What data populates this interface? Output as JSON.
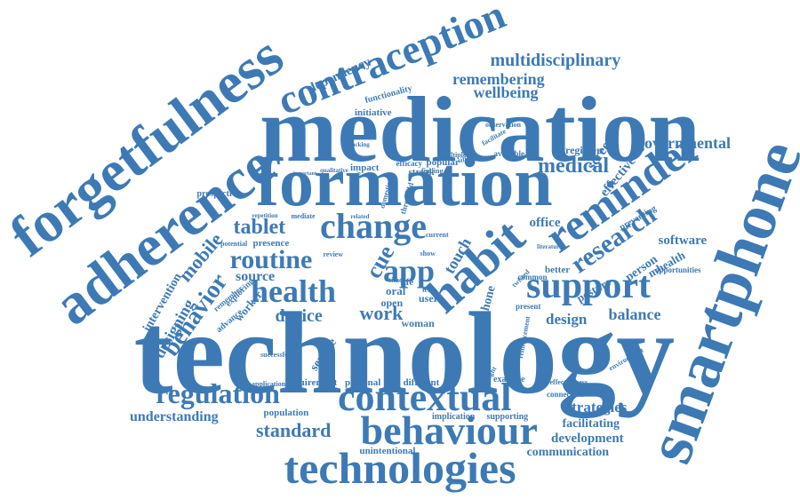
{
  "cloud": {
    "color": "#3d7ab5",
    "background": "#ffffff",
    "words": [
      "technology",
      "medication",
      "formation",
      "smartphone",
      "forgetfulness",
      "adherence",
      "contraception",
      "habit",
      "reminder",
      "technologies",
      "behaviour",
      "contextual",
      "support",
      "change",
      "health",
      "app",
      "regulation",
      "routine",
      "research",
      "multidisciplinary",
      "remembering",
      "wellbeing",
      "behavior",
      "tablet",
      "medical",
      "governmental",
      "mobile",
      "standard",
      "work",
      "device",
      "balance",
      "strategies",
      "understanding",
      "development",
      "communication",
      "facilitating",
      "design",
      "cue",
      "touch",
      "software",
      "screen",
      "effective",
      "office",
      "dependency",
      "intervention",
      "designing",
      "source",
      "worker",
      "person",
      "mhealth",
      "posture",
      "service",
      "population",
      "unintentional",
      "personal",
      "requirement",
      "different",
      "implication",
      "supporting",
      "example",
      "initiative",
      "functionality",
      "regimen",
      "streak",
      "popular",
      "impact",
      "phone",
      "oral",
      "open",
      "user",
      "woman",
      "life",
      "presence",
      "prospective",
      "advance",
      "exploring",
      "remember",
      "connection",
      "effectiveness",
      "opportunities",
      "better",
      "preventing",
      "environment",
      "present",
      "highlight",
      "reinforcement",
      "application",
      "successful",
      "threshold",
      "efficacy",
      "available",
      "observation",
      "facilitate",
      "potential",
      "mediate",
      "repetition",
      "related",
      "review",
      "thesis",
      "term",
      "multiple",
      "finding",
      "tracking",
      "qualitative",
      "domestic",
      "important",
      "common",
      "twisted",
      "literature",
      "current",
      "silka",
      "time",
      "show"
    ]
  }
}
